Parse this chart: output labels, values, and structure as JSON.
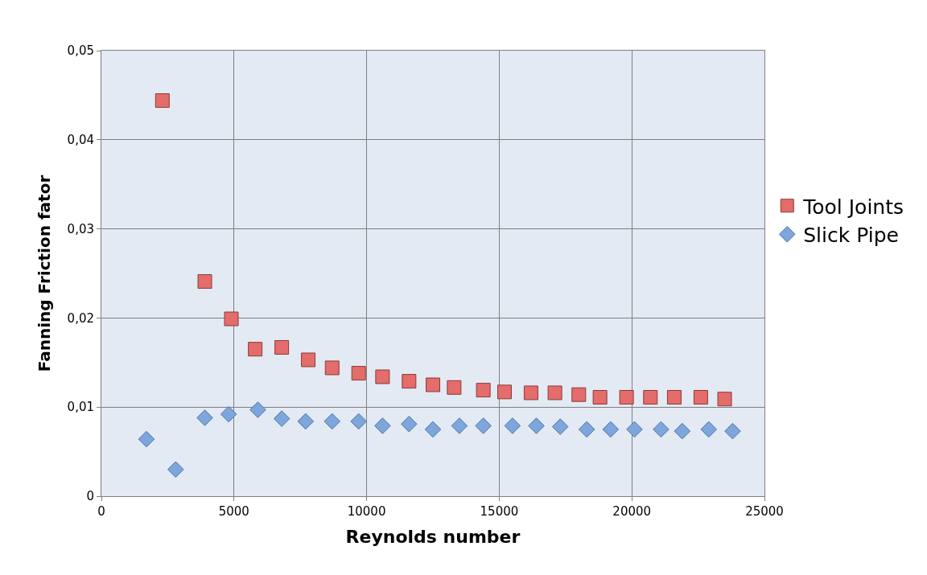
{
  "chart_data": {
    "type": "scatter",
    "xlabel": "Reynolds number",
    "ylabel": "Fanning Friction fator",
    "xlim": [
      0,
      25000
    ],
    "xticks": [
      0,
      5000,
      10000,
      15000,
      20000,
      25000
    ],
    "ylim": [
      0,
      0.05
    ],
    "yticks": [
      0,
      {
        "value": 0.01,
        "label": "0,01"
      },
      {
        "value": 0.02,
        "label": "0,02"
      },
      {
        "value": 0.03,
        "label": "0,03"
      },
      {
        "value": 0.04,
        "label": "0,04"
      },
      {
        "value": 0.05,
        "label": "0,05"
      }
    ],
    "grid": true,
    "legend": "right",
    "series": [
      {
        "name": "Tool Joints",
        "color": "#e46c6a",
        "marker": "square",
        "x": [
          2300,
          3900,
          4900,
          5800,
          6800,
          7800,
          8700,
          9700,
          10600,
          11600,
          12500,
          13300,
          14400,
          15200,
          16200,
          17100,
          18000,
          18800,
          19800,
          20700,
          21600,
          22600,
          23500
        ],
        "values": [
          0.0444,
          0.0241,
          0.0199,
          0.0165,
          0.0167,
          0.0153,
          0.0144,
          0.0138,
          0.0134,
          0.0129,
          0.0125,
          0.0122,
          0.0119,
          0.0117,
          0.0116,
          0.0116,
          0.0114,
          0.0111,
          0.0111,
          0.0111,
          0.0111,
          0.0111,
          0.0109
        ]
      },
      {
        "name": "Slick Pipe",
        "color": "#7ea6dc",
        "marker": "diamond",
        "x": [
          1700,
          2800,
          3900,
          4800,
          5900,
          6800,
          7700,
          8700,
          9700,
          10600,
          11600,
          12500,
          13500,
          14400,
          15500,
          16400,
          17300,
          18300,
          19200,
          20100,
          21100,
          21900,
          22900,
          23800
        ],
        "values": [
          0.0064,
          0.003,
          0.0088,
          0.0092,
          0.0097,
          0.0087,
          0.0084,
          0.0084,
          0.0084,
          0.0079,
          0.0081,
          0.0075,
          0.0079,
          0.0079,
          0.0079,
          0.0079,
          0.0078,
          0.0075,
          0.0075,
          0.0075,
          0.0075,
          0.0073,
          0.0075,
          0.0073
        ]
      }
    ]
  }
}
